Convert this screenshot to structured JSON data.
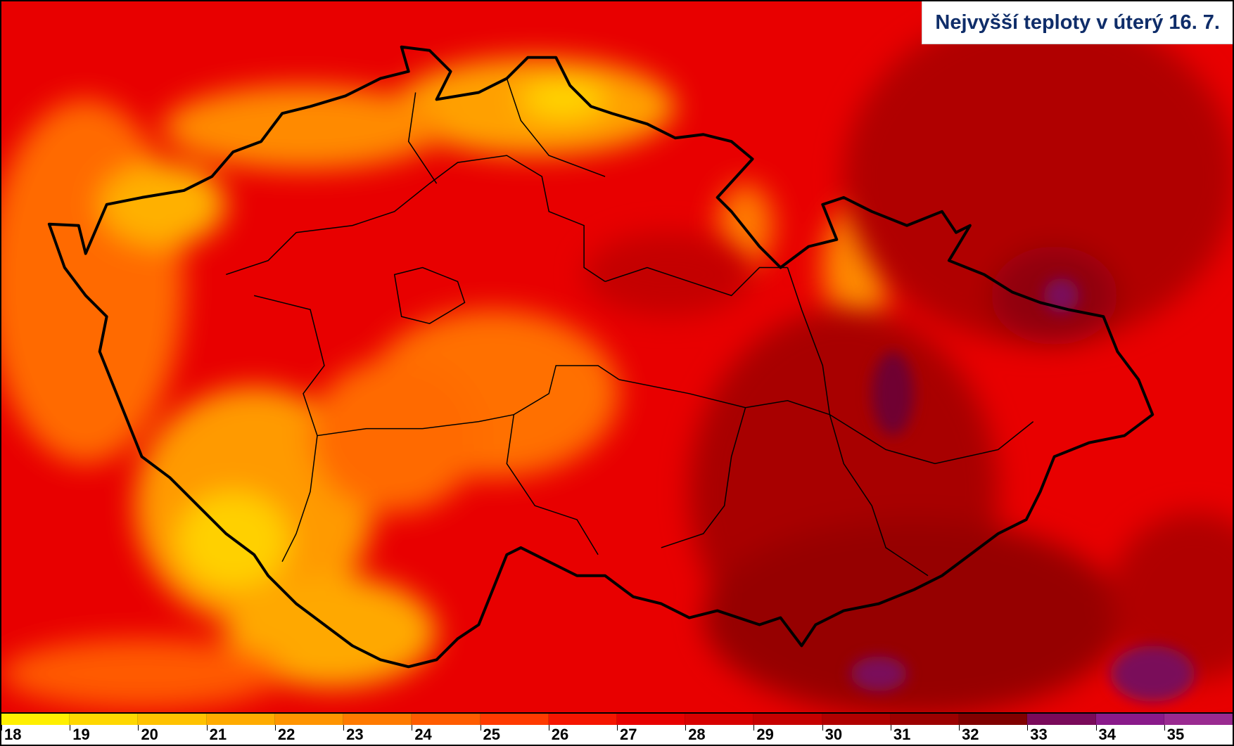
{
  "title": "Nejvyšší teploty v úterý 16. 7.",
  "legend": {
    "levels": [
      {
        "label": "18",
        "color": "#ffef00"
      },
      {
        "label": "19",
        "color": "#ffd700"
      },
      {
        "label": "20",
        "color": "#ffc200"
      },
      {
        "label": "21",
        "color": "#ffab00"
      },
      {
        "label": "22",
        "color": "#ff9400"
      },
      {
        "label": "23",
        "color": "#ff7a00"
      },
      {
        "label": "24",
        "color": "#ff5c00"
      },
      {
        "label": "25",
        "color": "#ff3a00"
      },
      {
        "label": "26",
        "color": "#f51500"
      },
      {
        "label": "27",
        "color": "#e80000"
      },
      {
        "label": "28",
        "color": "#d80000"
      },
      {
        "label": "29",
        "color": "#c60000"
      },
      {
        "label": "30",
        "color": "#b10000"
      },
      {
        "label": "31",
        "color": "#9c0000"
      },
      {
        "label": "32",
        "color": "#800000"
      },
      {
        "label": "33",
        "color": "#7a0a5a"
      },
      {
        "label": "34",
        "color": "#8a1a8a"
      },
      {
        "label": "35",
        "color": "#9a2a90"
      }
    ]
  },
  "map": {
    "background_color": "#e30b00",
    "border_color": "#000000"
  }
}
